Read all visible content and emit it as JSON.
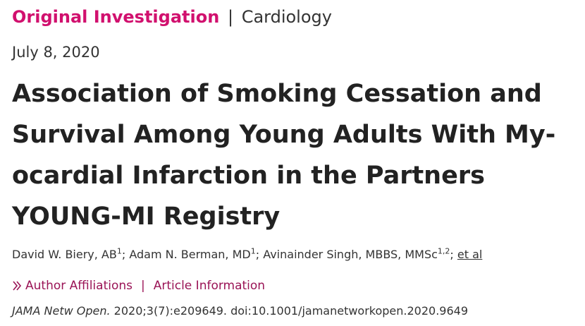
{
  "header": {
    "article_type": "Original Investigation",
    "separator": "|",
    "subject": "Cardiology"
  },
  "publication_date": "July 8, 2020",
  "title_lines": [
    "Association of Smoking Cessation and",
    "Survival Among Young Adults With My-",
    "ocardial Infarction in the Partners",
    "YOUNG-MI Registry"
  ],
  "authors": [
    {
      "name": "David W. Biery, AB",
      "affil": "1",
      "after": "; "
    },
    {
      "name": "Adam N. Berman, MD",
      "affil": "1",
      "after": "; "
    },
    {
      "name": "Avinainder Singh, MBBS, MMSc",
      "affil": "1,2",
      "after": "; "
    }
  ],
  "et_al": "et al",
  "links": {
    "author_affiliations": "Author Affiliations",
    "separator": "|",
    "article_information": "Article Information"
  },
  "citation": {
    "journal": "JAMA Netw Open.",
    "details": " 2020;3(7):e209649. doi:10.1001/jamanetworkopen.2020.9649"
  },
  "colors": {
    "article_type": "#d1106e",
    "links": "#9a1456",
    "text": "#222222"
  }
}
